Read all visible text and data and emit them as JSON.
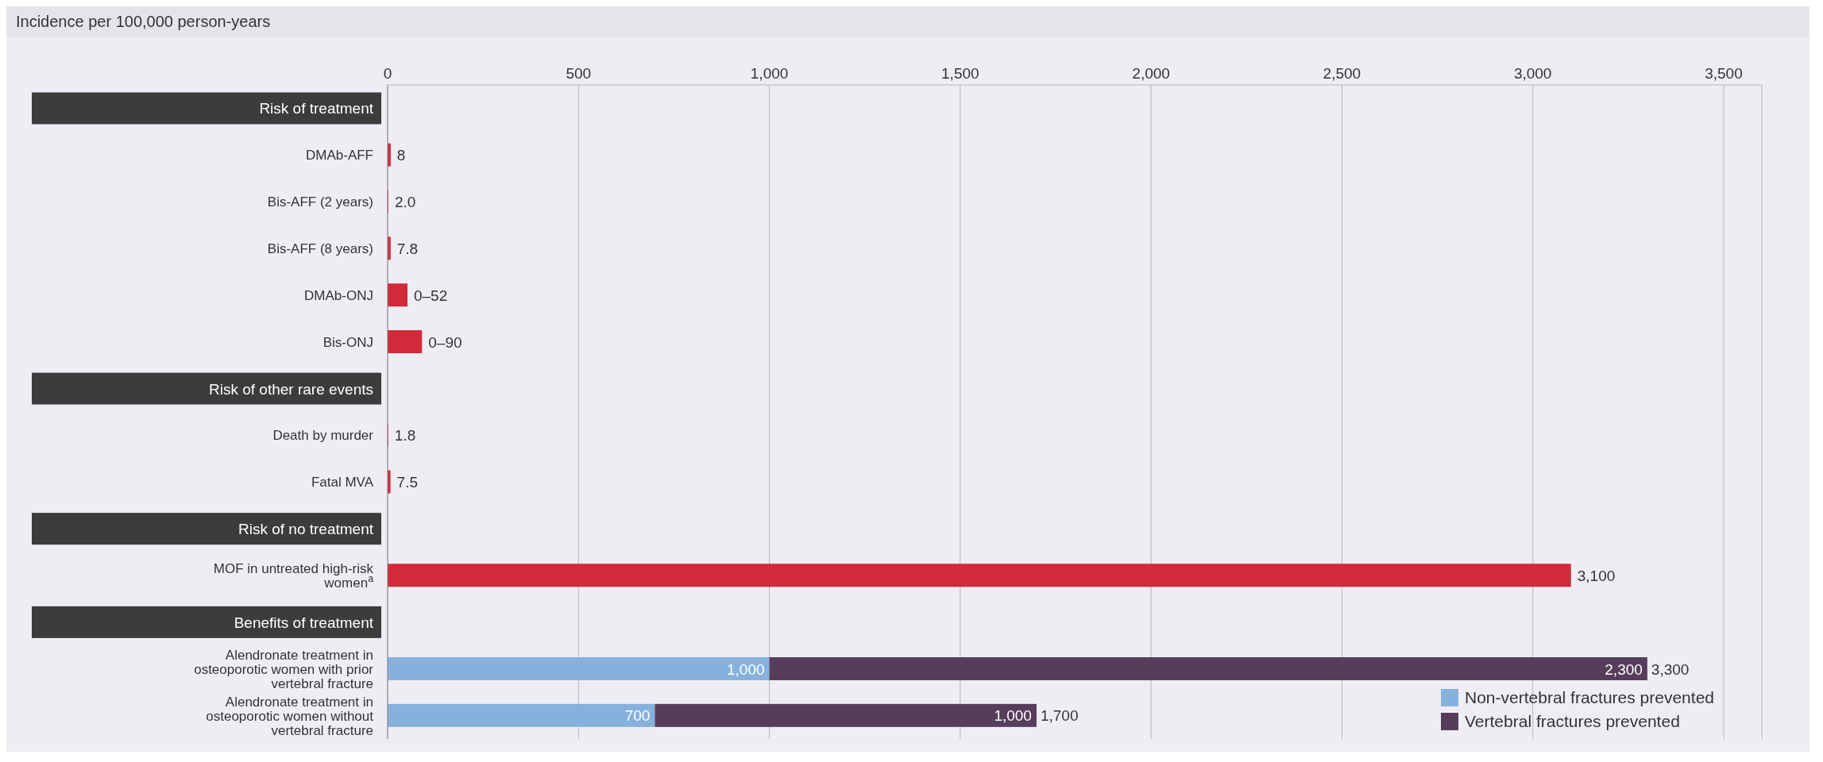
{
  "chart_data": {
    "type": "bar",
    "orientation": "horizontal",
    "stacked": true,
    "xlabel": "Incidence per 100,000 person-years",
    "categories": [
      "Risk of treatment",
      "DMAb-AFF",
      "Bis-AFF (2 years)",
      "Bis-AFF (8 years)",
      "DMAb-ONJ",
      "Bis-ONJ",
      "Risk of other rare events",
      "Death by murder",
      "Fatal MVA",
      "Risk of no treatment",
      "MOF in untreated high-risk women$^{a}$",
      "Benefits of treatment",
      "Alendronate treatment in osteoporotic women with prior vertebral fracture",
      "Alendronate treatment in osteoporotic women without vertebral fracture"
    ],
    "series": [
      {
        "color": "#d12a38",
        "values": [
          null,
          8,
          2.0,
          7.8,
          52,
          90,
          null,
          1.8,
          7.5,
          null,
          3100,
          null,
          null,
          null
        ],
        "value_labels": [
          null,
          "8",
          "2.0",
          "7.8",
          "0–52",
          "0–90",
          null,
          "1.8",
          "7.5",
          null,
          "3,100",
          null,
          null,
          null
        ]
      },
      {
        "name": "Non-vertebral fractures prevented",
        "color": "#86b1dd",
        "values": [
          null,
          null,
          null,
          null,
          null,
          null,
          null,
          null,
          null,
          null,
          null,
          null,
          1000,
          700
        ],
        "value_labels": [
          null,
          null,
          null,
          null,
          null,
          null,
          null,
          null,
          null,
          null,
          null,
          null,
          "1,000",
          "700"
        ]
      },
      {
        "name": "Vertebral fractures prevented",
        "color": "#573d5c",
        "values": [
          null,
          null,
          null,
          null,
          null,
          null,
          null,
          null,
          null,
          null,
          null,
          null,
          2300,
          1000
        ],
        "value_labels": [
          null,
          null,
          null,
          null,
          null,
          null,
          null,
          null,
          null,
          null,
          null,
          null,
          "2,300",
          "1,000"
        ]
      }
    ],
    "totals": [
      null,
      null,
      null,
      null,
      null,
      null,
      null,
      null,
      null,
      null,
      null,
      null,
      "3,300",
      "1,700"
    ],
    "xlim": [
      0,
      3600
    ],
    "xticks": [
      0,
      500,
      {
        "value": 1000,
        "label": "1,000"
      },
      {
        "value": 1500,
        "label": "1,500"
      },
      {
        "value": 2000,
        "label": "2,000"
      },
      {
        "value": 2500,
        "label": "2,500"
      },
      {
        "value": 3000,
        "label": "3,000"
      },
      {
        "value": 3500,
        "label": "3,500"
      }
    ],
    "grid": "x",
    "legend": "bottom right"
  }
}
